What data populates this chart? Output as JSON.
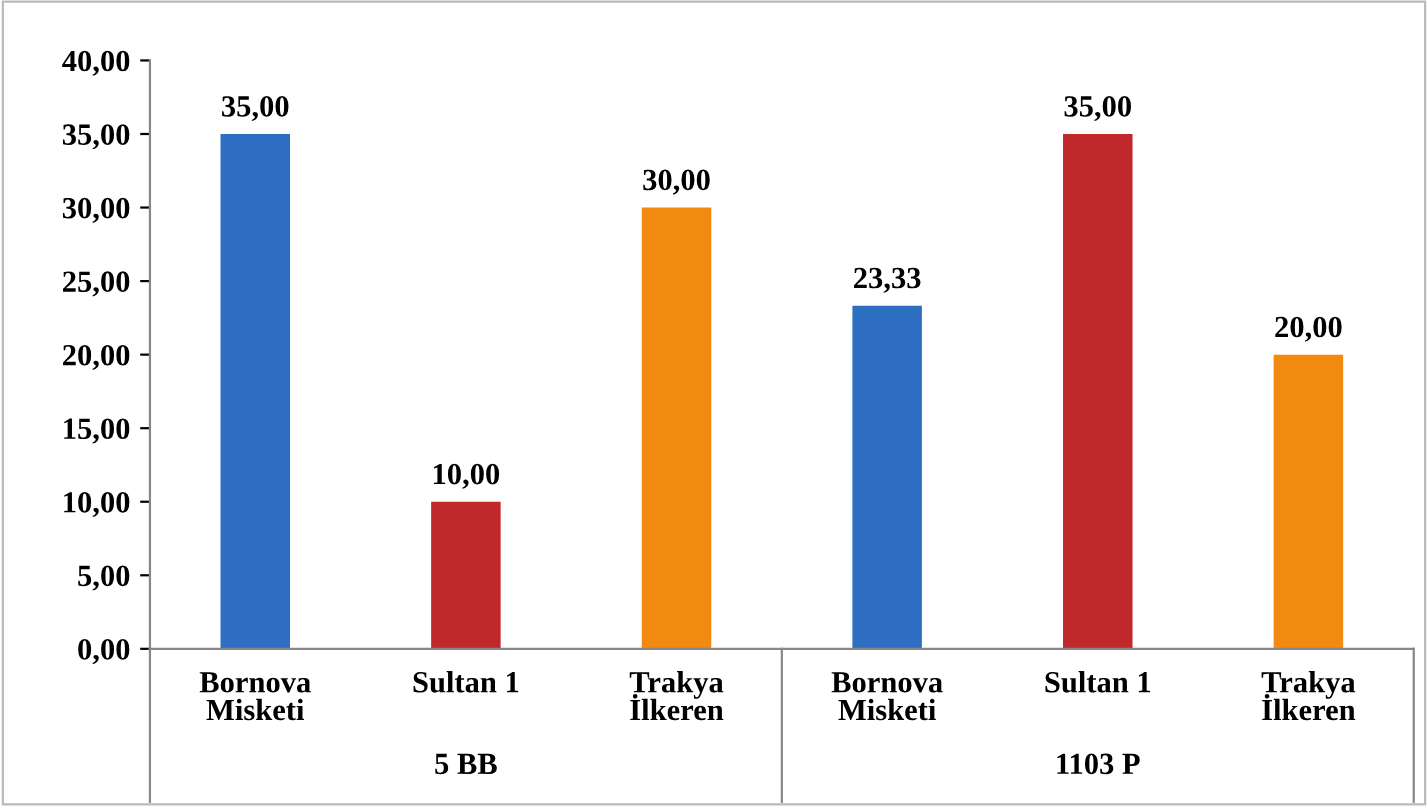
{
  "chart_data": {
    "type": "bar",
    "categories": [
      "Bornova\nMisketi",
      "Sultan 1",
      "Trakya\nİlkeren",
      "Bornova\nMisketi",
      "Sultan 1",
      "Trakya\nİlkeren"
    ],
    "values": [
      35.0,
      10.0,
      30.0,
      23.33,
      35.0,
      20.0
    ],
    "colors": [
      "#2f6fc2",
      "#c0282c",
      "#f28a12",
      "#2f6fc2",
      "#c0282c",
      "#f28a12"
    ],
    "value_labels": [
      "35,00",
      "10,00",
      "30,00",
      "23,33",
      "35,00",
      "20,00"
    ],
    "ylim": [
      0,
      40
    ],
    "yticks": [
      {
        "value": 0,
        "label": "0,00"
      },
      {
        "value": 5,
        "label": "5,00"
      },
      {
        "value": 10,
        "label": "10,00"
      },
      {
        "value": 15,
        "label": "15,00"
      },
      {
        "value": 20,
        "label": "20,00"
      },
      {
        "value": 25,
        "label": "25,00"
      },
      {
        "value": 30,
        "label": "30,00"
      },
      {
        "value": 35,
        "label": "35,00"
      },
      {
        "value": 40,
        "label": "40,00"
      }
    ],
    "annotations": [
      "5 BB",
      "1103 P"
    ],
    "grid": false,
    "legend": false
  }
}
